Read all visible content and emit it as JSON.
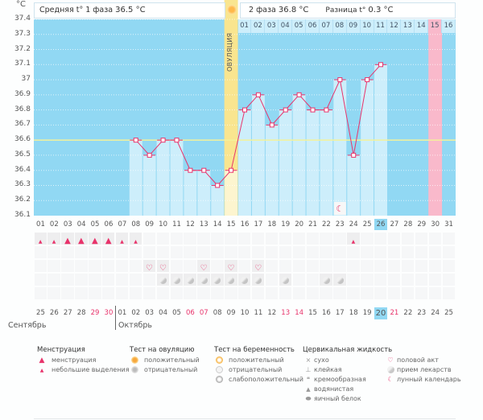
{
  "header": {
    "phase1_label": "Средняя t° 1 фаза",
    "phase1_value": "36.5 °C",
    "phase2_label": "2 фаза",
    "phase2_value": "36.8 °C",
    "diff_label": "Разница t°",
    "diff_value": "0.3 °C",
    "ovulation_label": "ОВУЛЯЦИЯ"
  },
  "colors": {
    "background": "#91d8f3",
    "bar": "#cdeefb",
    "line": "#e8336b",
    "ovulation": "#f9e58f",
    "ovulation_light": "#fdf5cf",
    "highlight_day": "#f9b9cb",
    "coverline": "#f3f29a",
    "today": "#91d8f3"
  },
  "chart_data": {
    "type": "line",
    "title": "",
    "ylabel": "°C",
    "unit_label": "°C",
    "ylim": [
      36.1,
      37.4
    ],
    "yticks": [
      "37.4",
      "37.3",
      "37.2",
      "37.1",
      "37",
      "36.9",
      "36.8",
      "36.7",
      "36.6",
      "36.5",
      "36.4",
      "36.3",
      "36.2",
      "36.1"
    ],
    "coverline": 36.6,
    "cycle_days": [
      "01",
      "02",
      "03",
      "04",
      "05",
      "06",
      "07",
      "08",
      "09",
      "10",
      "11",
      "12",
      "13",
      "14",
      "15",
      "16",
      "17",
      "18",
      "19",
      "20",
      "21",
      "22",
      "23",
      "24",
      "25",
      "26",
      "27",
      "28",
      "29",
      "30",
      "31"
    ],
    "phase2_day_numbers": [
      "01",
      "02",
      "03",
      "04",
      "05",
      "06",
      "07",
      "08",
      "09",
      "10",
      "11",
      "12",
      "13",
      "14",
      "15",
      "16"
    ],
    "phase2_highlight": "15",
    "ovulation_day": "15",
    "highlight_day": "30",
    "today_day": "26",
    "series": [
      {
        "name": "Базальная температура",
        "x": [
          "08",
          "09",
          "10",
          "11",
          "12",
          "13",
          "14",
          "15",
          "16",
          "17",
          "18",
          "19",
          "20",
          "21",
          "22",
          "23",
          "24",
          "25",
          "26"
        ],
        "values": [
          36.6,
          36.5,
          36.6,
          36.6,
          36.4,
          36.4,
          36.3,
          36.4,
          36.8,
          36.9,
          36.7,
          36.8,
          36.9,
          36.8,
          36.8,
          37.0,
          36.5,
          37.0,
          37.1
        ]
      }
    ],
    "moon_day": "23"
  },
  "marks": {
    "menstruation_heavy": [
      "03",
      "04",
      "05",
      "06"
    ],
    "menstruation_light": [
      "01",
      "02",
      "07",
      "08",
      "24"
    ],
    "intercourse": [
      "09",
      "10",
      "13",
      "15",
      "17"
    ],
    "medication": [
      "10",
      "11",
      "12",
      "13",
      "14",
      "15",
      "16",
      "17",
      "19",
      "22",
      "23"
    ]
  },
  "calendar": {
    "dates": [
      "25",
      "26",
      "27",
      "28",
      "29",
      "30",
      "01",
      "02",
      "03",
      "04",
      "05",
      "06",
      "07",
      "08",
      "09",
      "10",
      "11",
      "12",
      "13",
      "14",
      "15",
      "16",
      "17",
      "18",
      "19",
      "20",
      "21",
      "22",
      "23",
      "24",
      "25"
    ],
    "weekend_red": [
      "29a",
      "30a",
      "06",
      "07",
      "13",
      "14",
      "21"
    ],
    "red_indices": [
      4,
      5,
      11,
      12,
      18,
      19,
      26
    ],
    "today_index": 25,
    "month1": "Сентябрь",
    "month2": "Октябрь"
  },
  "legend": {
    "menstruation": {
      "title": "Менструация",
      "items": [
        "менструация",
        "небольшие выделения"
      ]
    },
    "ovulation_test": {
      "title": "Тест на овуляцию",
      "items": [
        "положительный",
        "отрицательный"
      ]
    },
    "pregnancy_test": {
      "title": "Тест на беременность",
      "items": [
        "положительный",
        "отрицательный",
        "слабоположительный"
      ]
    },
    "cervical": {
      "title": "Цервикальная жидкость",
      "items": [
        "сухо",
        "клейкая",
        "кремообразная",
        "водянистая",
        "яичный белок"
      ]
    },
    "other": {
      "items": [
        "половой акт",
        "прием лекарств",
        "лунный календарь"
      ]
    }
  }
}
